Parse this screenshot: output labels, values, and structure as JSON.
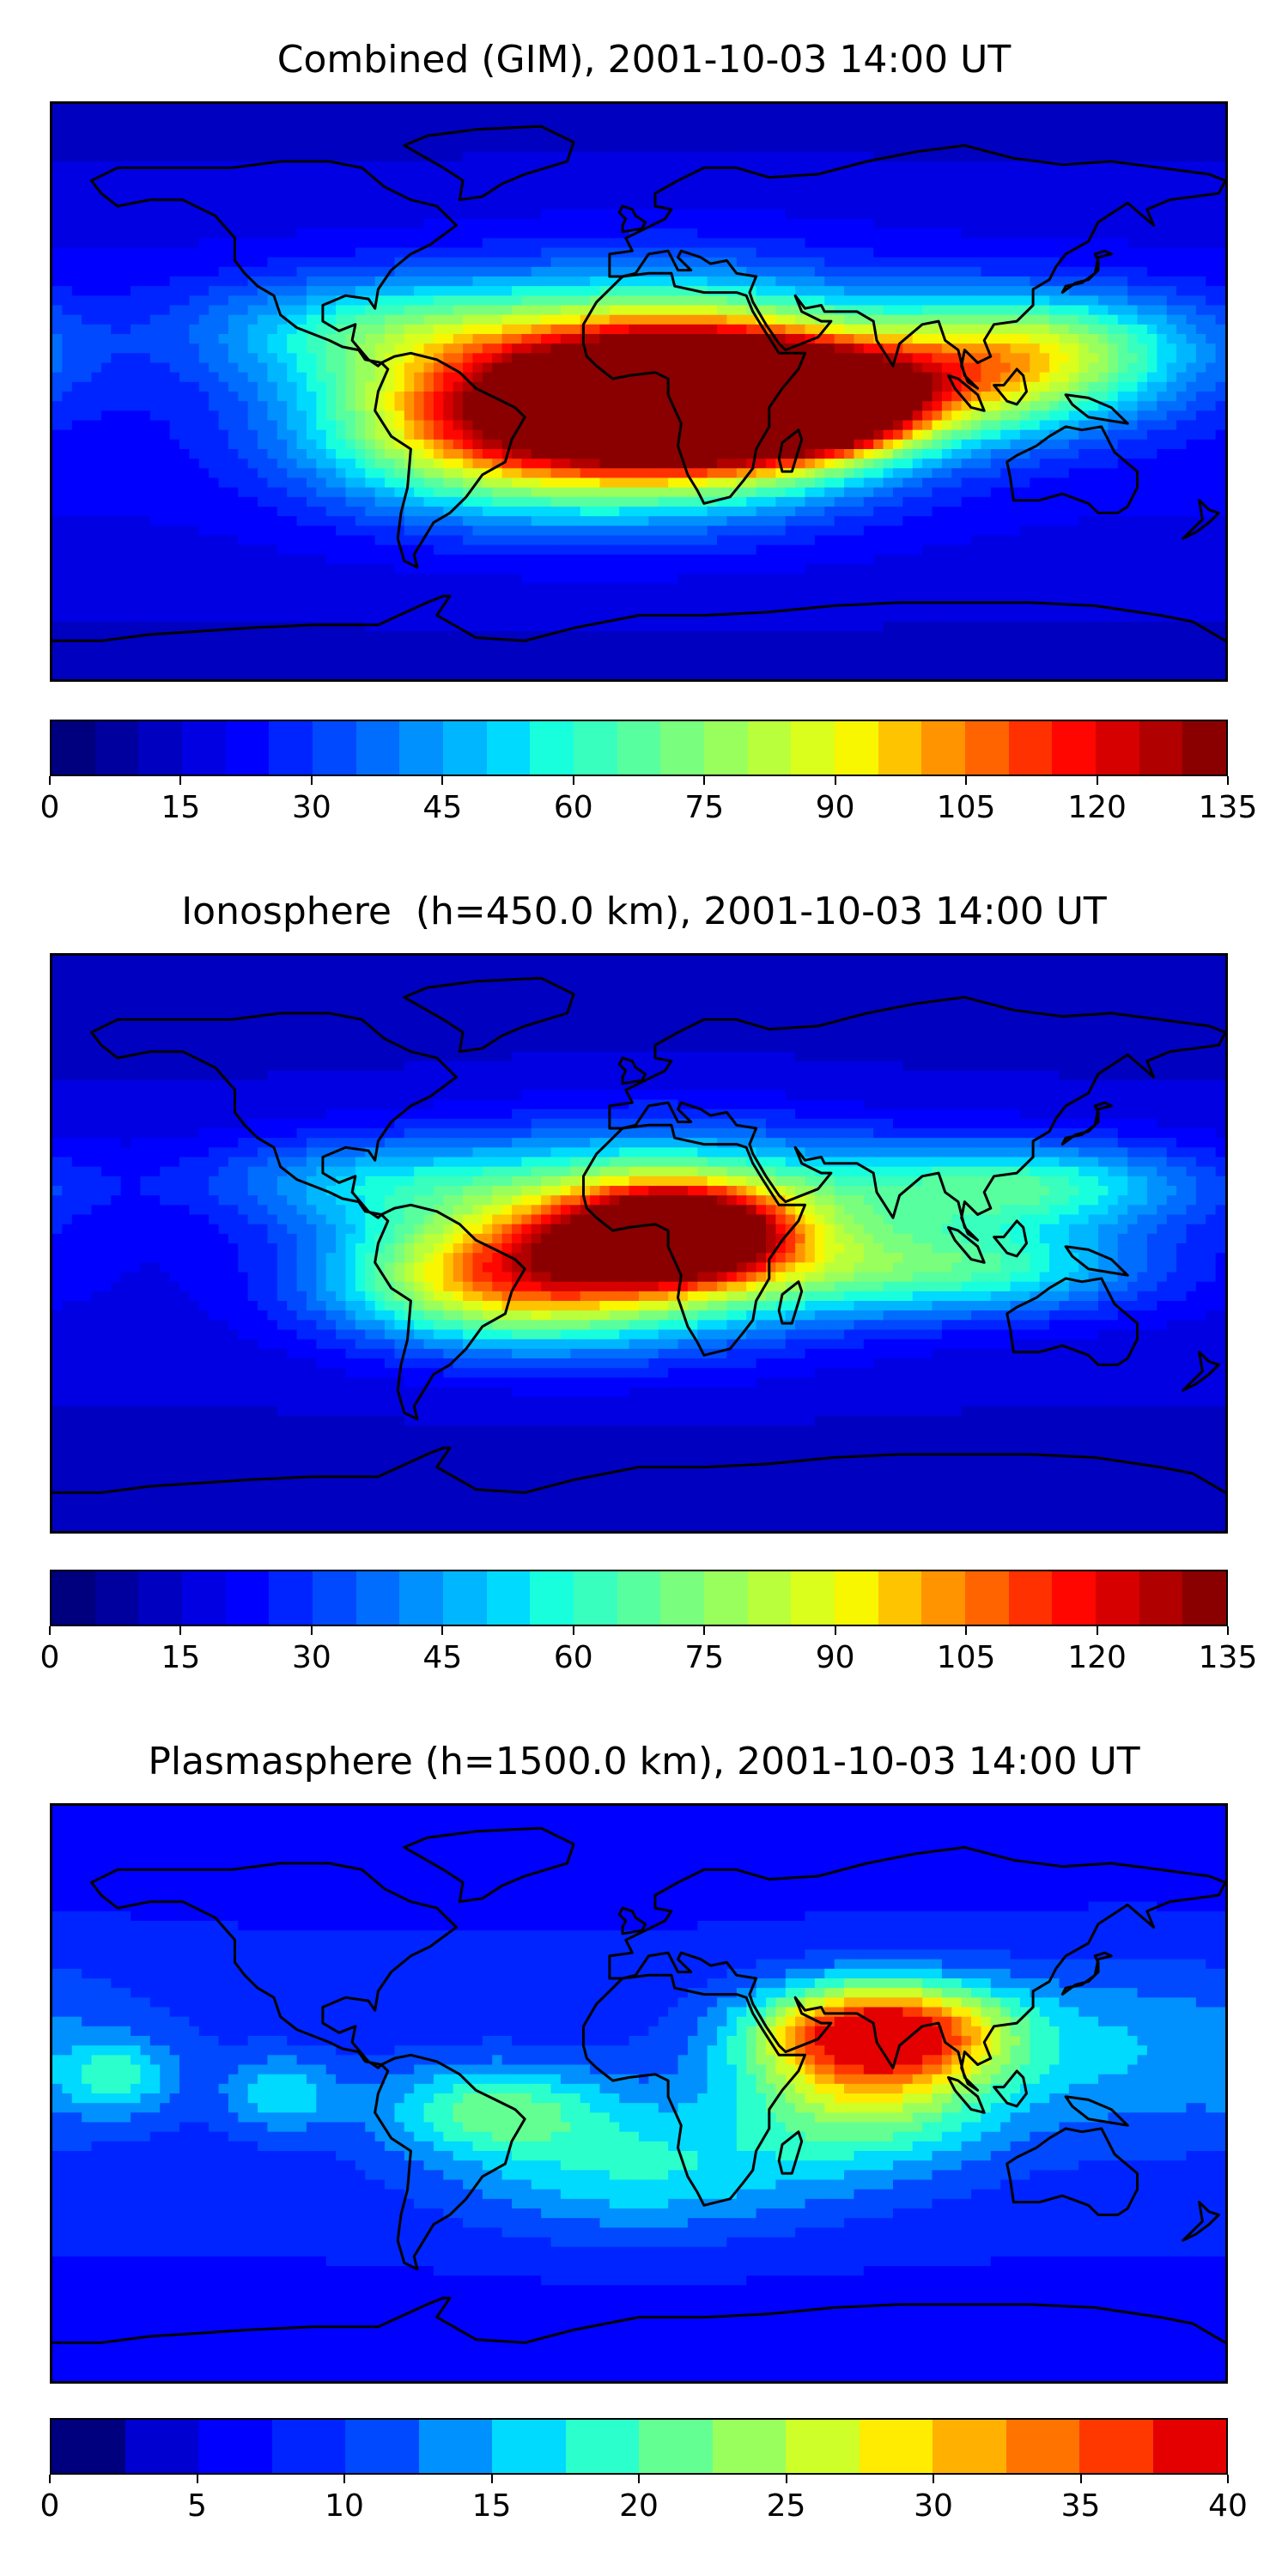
{
  "panels": [
    {
      "title": "Combined (GIM), 2001-10-03 14:00 UT",
      "colorbar": {
        "min": 0,
        "max": 135,
        "levels": 27,
        "ticks": [
          "0",
          "15",
          "30",
          "45",
          "60",
          "75",
          "90",
          "105",
          "120",
          "135"
        ],
        "colors": [
          "#00007f",
          "#00009e",
          "#0000c1",
          "#0000e3",
          "#0000ff",
          "#0024ff",
          "#0049ff",
          "#006dff",
          "#0091ff",
          "#00b6ff",
          "#00daff",
          "#18ffde",
          "#38ffbe",
          "#58ff9e",
          "#79ff7d",
          "#99ff5d",
          "#baff3c",
          "#daff1c",
          "#f9f700",
          "#ffc400",
          "#ff9400",
          "#ff6400",
          "#ff3100",
          "#ff0600",
          "#d60000",
          "#b00000",
          "#8a0000"
        ]
      },
      "features": [
        {
          "lon": 10,
          "lat": 0,
          "rx": 45,
          "ry": 22,
          "v": 115
        },
        {
          "lon": 20,
          "lat": -3,
          "rx": 30,
          "ry": 15,
          "v": 120
        },
        {
          "lon": -45,
          "lat": -10,
          "rx": 38,
          "ry": 18,
          "v": 95
        },
        {
          "lon": 55,
          "lat": -5,
          "rx": 20,
          "ry": 10,
          "v": 110
        },
        {
          "lon": 90,
          "lat": 0,
          "rx": 40,
          "ry": 12,
          "v": 70
        },
        {
          "lon": 120,
          "lat": 15,
          "rx": 35,
          "ry": 12,
          "v": 75
        },
        {
          "lon": -80,
          "lat": 20,
          "rx": 40,
          "ry": 12,
          "v": 55
        }
      ],
      "base": 22
    },
    {
      "title": "Ionosphere  (h=450.0 km), 2001-10-03 14:00 UT",
      "colorbar": {
        "min": 0,
        "max": 135,
        "levels": 27,
        "ticks": [
          "0",
          "15",
          "30",
          "45",
          "60",
          "75",
          "90",
          "105",
          "120",
          "135"
        ],
        "colors": [
          "#00007f",
          "#00009e",
          "#0000c1",
          "#0000e3",
          "#0000ff",
          "#0024ff",
          "#0049ff",
          "#006dff",
          "#0091ff",
          "#00b6ff",
          "#00daff",
          "#18ffde",
          "#38ffbe",
          "#58ff9e",
          "#79ff7d",
          "#99ff5d",
          "#baff3c",
          "#daff1c",
          "#f9f700",
          "#ffc400",
          "#ff9400",
          "#ff6400",
          "#ff3100",
          "#ff0600",
          "#d60000",
          "#b00000",
          "#8a0000"
        ]
      },
      "features": [
        {
          "lon": 5,
          "lat": 3,
          "rx": 45,
          "ry": 20,
          "v": 100
        },
        {
          "lon": 12,
          "lat": 3,
          "rx": 22,
          "ry": 10,
          "v": 108
        },
        {
          "lon": -45,
          "lat": -12,
          "rx": 35,
          "ry": 14,
          "v": 80
        },
        {
          "lon": 115,
          "lat": 18,
          "rx": 40,
          "ry": 10,
          "v": 65
        },
        {
          "lon": 100,
          "lat": -8,
          "rx": 40,
          "ry": 10,
          "v": 60
        },
        {
          "lon": -85,
          "lat": 20,
          "rx": 35,
          "ry": 10,
          "v": 45
        }
      ],
      "base": 18
    },
    {
      "title": "Plasmasphere (h=1500.0 km), 2001-10-03 14:00 UT",
      "colorbar": {
        "min": 0,
        "max": 40,
        "levels": 16,
        "ticks": [
          "0",
          "5",
          "10",
          "15",
          "20",
          "25",
          "30",
          "35",
          "40"
        ],
        "colors": [
          "#00007f",
          "#0000d1",
          "#0000ff",
          "#0024ff",
          "#0049ff",
          "#0091ff",
          "#00daff",
          "#2bffcb",
          "#64ff92",
          "#99ff5d",
          "#ceff28",
          "#ffec00",
          "#ffb000",
          "#ff7400",
          "#ff3800",
          "#e40000"
        ]
      },
      "features": [
        {
          "lon": 75,
          "lat": 20,
          "rx": 25,
          "ry": 10,
          "v": 34
        },
        {
          "lon": 70,
          "lat": 5,
          "rx": 28,
          "ry": 18,
          "v": 26
        },
        {
          "lon": -45,
          "lat": -5,
          "rx": 25,
          "ry": 10,
          "v": 20
        },
        {
          "lon": -160,
          "lat": 5,
          "rx": 12,
          "ry": 8,
          "v": 17
        },
        {
          "lon": -110,
          "lat": 0,
          "rx": 12,
          "ry": 8,
          "v": 17
        },
        {
          "lon": 0,
          "lat": -25,
          "rx": 40,
          "ry": 15,
          "v": 18
        },
        {
          "lon": 150,
          "lat": 15,
          "rx": 40,
          "ry": 20,
          "v": 15
        }
      ],
      "base": 9
    }
  ]
}
